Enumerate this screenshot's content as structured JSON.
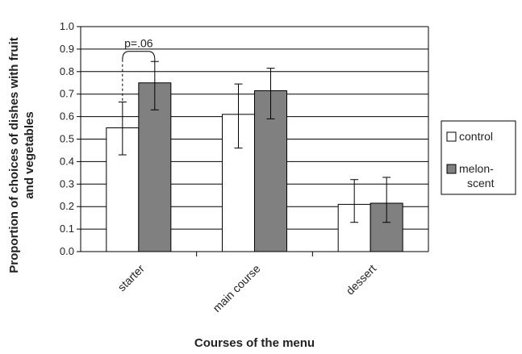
{
  "chart_data": {
    "type": "bar",
    "title": "",
    "xlabel": "Courses of the menu",
    "ylabel_lines": [
      "Proportion of choices of dishes with fruit",
      "and vegetables"
    ],
    "categories": [
      "starter",
      "main course",
      "dessert"
    ],
    "series": [
      {
        "name": "control",
        "color": "#ffffff",
        "values": [
          0.55,
          0.61,
          0.21
        ],
        "error_low": [
          0.43,
          0.46,
          0.13
        ],
        "error_high": [
          0.665,
          0.745,
          0.32
        ]
      },
      {
        "name": "melon-scent",
        "name_lines": [
          "melon-",
          "scent"
        ],
        "color": "#808080",
        "values": [
          0.75,
          0.715,
          0.215
        ],
        "error_low": [
          0.63,
          0.59,
          0.13
        ],
        "error_high": [
          0.845,
          0.815,
          0.33
        ]
      }
    ],
    "ylim": [
      0,
      1.0
    ],
    "yticks": [
      "0.0",
      "0.1",
      "0.2",
      "0.3",
      "0.4",
      "0.5",
      "0.6",
      "0.7",
      "0.8",
      "0.9",
      "1.0"
    ],
    "grid": true,
    "legend_position": "right",
    "annotation": {
      "text": "p=.06",
      "category": "starter",
      "bracket_y": 0.89
    }
  }
}
